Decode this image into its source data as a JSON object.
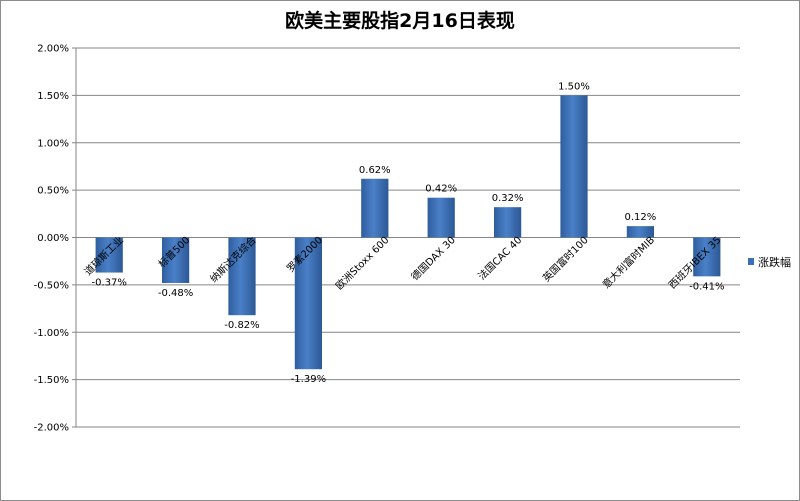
{
  "chart_data": {
    "type": "bar",
    "title": "欧美主要股指2月16日表现",
    "categories": [
      "道琼斯工业",
      "标普500",
      "纳斯达克综合",
      "罗素2000",
      "欧洲Stoxx 600",
      "德国DAX 30",
      "法国CAC 40",
      "英国富时100",
      "意大利富时MIB",
      "西班牙IBEX 35"
    ],
    "series": [
      {
        "name": "涨跌幅",
        "values": [
          -0.37,
          -0.48,
          -0.82,
          -1.39,
          0.62,
          0.42,
          0.32,
          1.5,
          0.12,
          -0.41
        ],
        "labels": [
          "-0.37%",
          "-0.48%",
          "-0.82%",
          "-1.39%",
          "0.62%",
          "0.42%",
          "0.32%",
          "1.50%",
          "0.12%",
          "-0.41%"
        ],
        "color": "#3b6fb6"
      }
    ],
    "ylim": [
      -2.0,
      2.0
    ],
    "yticks": [
      2.0,
      1.5,
      1.0,
      0.5,
      0.0,
      -0.5,
      -1.0,
      -1.5,
      -2.0
    ],
    "ytick_labels": [
      "2.00%",
      "1.50%",
      "1.00%",
      "0.50%",
      "0.00%",
      "-0.50%",
      "-1.00%",
      "-1.50%",
      "-2.00%"
    ],
    "grid": true,
    "legend_position": "right"
  }
}
